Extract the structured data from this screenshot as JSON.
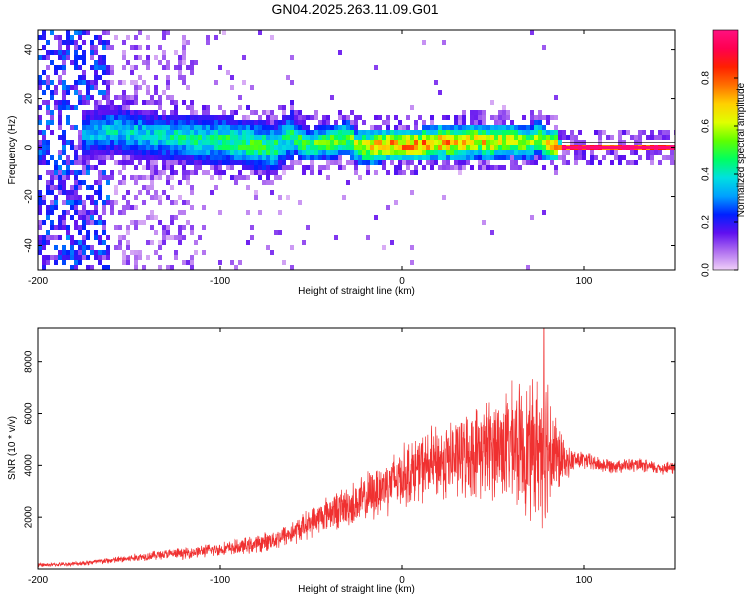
{
  "title": "GN04.2025.263.11.09.G01",
  "chart_data": [
    {
      "type": "heatmap",
      "xlabel": "Height of straight line (km)",
      "ylabel": "Frequency (Hz)",
      "xlim": [
        -200,
        150
      ],
      "ylim": [
        -50,
        48
      ],
      "xticks": [
        -200,
        -100,
        0,
        100
      ],
      "yticks": [
        -40,
        -20,
        0,
        20,
        40
      ],
      "colorbar": {
        "label": "Normalized spectral amplitude",
        "range": [
          0,
          1
        ],
        "ticks": [
          "0.0",
          "0.2",
          "0.4",
          "0.6",
          "0.8"
        ],
        "colors": [
          "#f0d0f8",
          "#b070f0",
          "#6010f0",
          "#0020ff",
          "#00a0ff",
          "#00e0e0",
          "#00ff60",
          "#60ff00",
          "#e0ff00",
          "#ffd000",
          "#ff7000",
          "#ff2000",
          "#ff0050",
          "#ff1080"
        ]
      },
      "ridge": {
        "x": [
          -175,
          -160,
          -150,
          -140,
          -130,
          -120,
          -110,
          -100,
          -90,
          -80,
          -70,
          -65,
          -60,
          -55,
          -50,
          -40,
          -30,
          -25,
          -20,
          -10,
          0,
          10,
          20,
          30,
          40,
          50,
          60,
          70,
          75,
          80,
          85,
          90,
          100,
          110,
          120,
          130,
          140,
          150
        ],
        "y": [
          5,
          7,
          6,
          5,
          4,
          4,
          3,
          3,
          2,
          1,
          0,
          3,
          5,
          2,
          1,
          2,
          4,
          1,
          0,
          1,
          1,
          1,
          2,
          2,
          3,
          2,
          3,
          2,
          4,
          1,
          1,
          0,
          0,
          0,
          0,
          0,
          0,
          0
        ],
        "amplitude": [
          0.35,
          0.4,
          0.42,
          0.4,
          0.42,
          0.45,
          0.45,
          0.48,
          0.5,
          0.5,
          0.5,
          0.45,
          0.5,
          0.52,
          0.55,
          0.55,
          0.6,
          0.62,
          0.7,
          0.75,
          0.78,
          0.8,
          0.78,
          0.75,
          0.72,
          0.7,
          0.65,
          0.62,
          0.6,
          0.68,
          0.78,
          0.95,
          0.98,
          0.98,
          0.98,
          0.98,
          0.98,
          0.98
        ]
      }
    },
    {
      "type": "line",
      "xlabel": "Height of straight line (km)",
      "ylabel": "SNR (10 * v/v)",
      "xlim": [
        -200,
        150
      ],
      "ylim": [
        0,
        9300
      ],
      "xticks": [
        -200,
        -100,
        0,
        100
      ],
      "yticks": [
        2000,
        4000,
        6000,
        8000
      ],
      "series": [
        {
          "color": "#f03030",
          "x": [
            -200,
            -190,
            -180,
            -170,
            -160,
            -150,
            -140,
            -130,
            -120,
            -110,
            -100,
            -90,
            -80,
            -70,
            -60,
            -50,
            -40,
            -30,
            -20,
            -10,
            0,
            10,
            20,
            30,
            40,
            50,
            60,
            65,
            70,
            75,
            80,
            85,
            90,
            95,
            100,
            110,
            120,
            130,
            140,
            150
          ],
          "y": [
            150,
            170,
            200,
            260,
            330,
            400,
            500,
            570,
            600,
            690,
            760,
            840,
            950,
            1150,
            1400,
            1800,
            2200,
            2400,
            2700,
            3200,
            3600,
            3900,
            4100,
            4300,
            4500,
            4700,
            4800,
            4700,
            4600,
            4700,
            4900,
            4300,
            4100,
            4200,
            4200,
            4000,
            4000,
            4000,
            3900,
            3900
          ],
          "amplitude": [
            80,
            90,
            100,
            130,
            150,
            170,
            200,
            230,
            250,
            280,
            300,
            350,
            400,
            450,
            550,
            650,
            800,
            950,
            1100,
            1300,
            1400,
            1500,
            1700,
            1800,
            2000,
            2300,
            2600,
            2800,
            3000,
            3200,
            3600,
            1800,
            700,
            500,
            400,
            350,
            320,
            300,
            300,
            300
          ],
          "peak": {
            "x": 78,
            "y": 9300
          }
        }
      ]
    }
  ]
}
